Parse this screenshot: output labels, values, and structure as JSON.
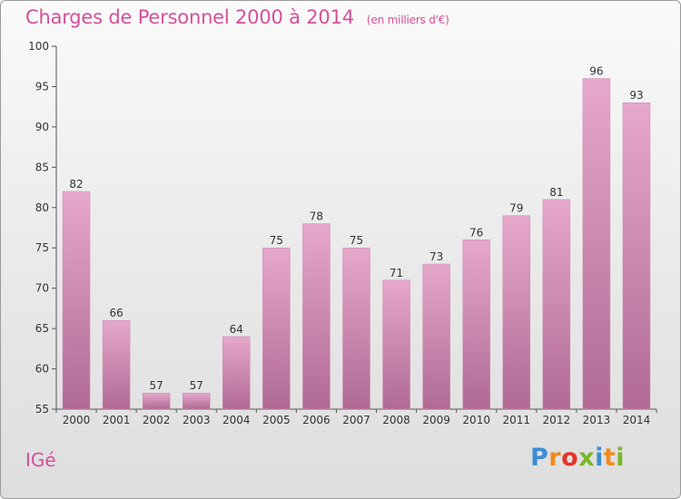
{
  "header": {
    "title": "Charges de Personnel 2000 à 2014",
    "subtitle": "(en milliers d'€)"
  },
  "footer": {
    "commune": "IGé",
    "logo_text": "Proxiti",
    "logo_colors": [
      "#3d8fd1",
      "#f08a1c",
      "#e6332a",
      "#7ab829",
      "#3d8fd1",
      "#f08a1c",
      "#7ab829"
    ]
  },
  "chart_data": {
    "type": "bar",
    "title": "Charges de Personnel 2000 à 2014",
    "subtitle": "(en milliers d'€)",
    "categories": [
      "2000",
      "2001",
      "2002",
      "2003",
      "2004",
      "2005",
      "2006",
      "2007",
      "2008",
      "2009",
      "2010",
      "2011",
      "2012",
      "2013",
      "2014"
    ],
    "values": [
      82,
      66,
      57,
      57,
      64,
      75,
      78,
      75,
      71,
      73,
      76,
      79,
      81,
      96,
      93
    ],
    "ylim": [
      55,
      100
    ],
    "yticks": [
      55,
      60,
      65,
      70,
      75,
      80,
      85,
      90,
      95,
      100
    ],
    "grid": false,
    "bar_color_top": "#e6a8cb",
    "bar_color_bottom": "#b06a94"
  }
}
